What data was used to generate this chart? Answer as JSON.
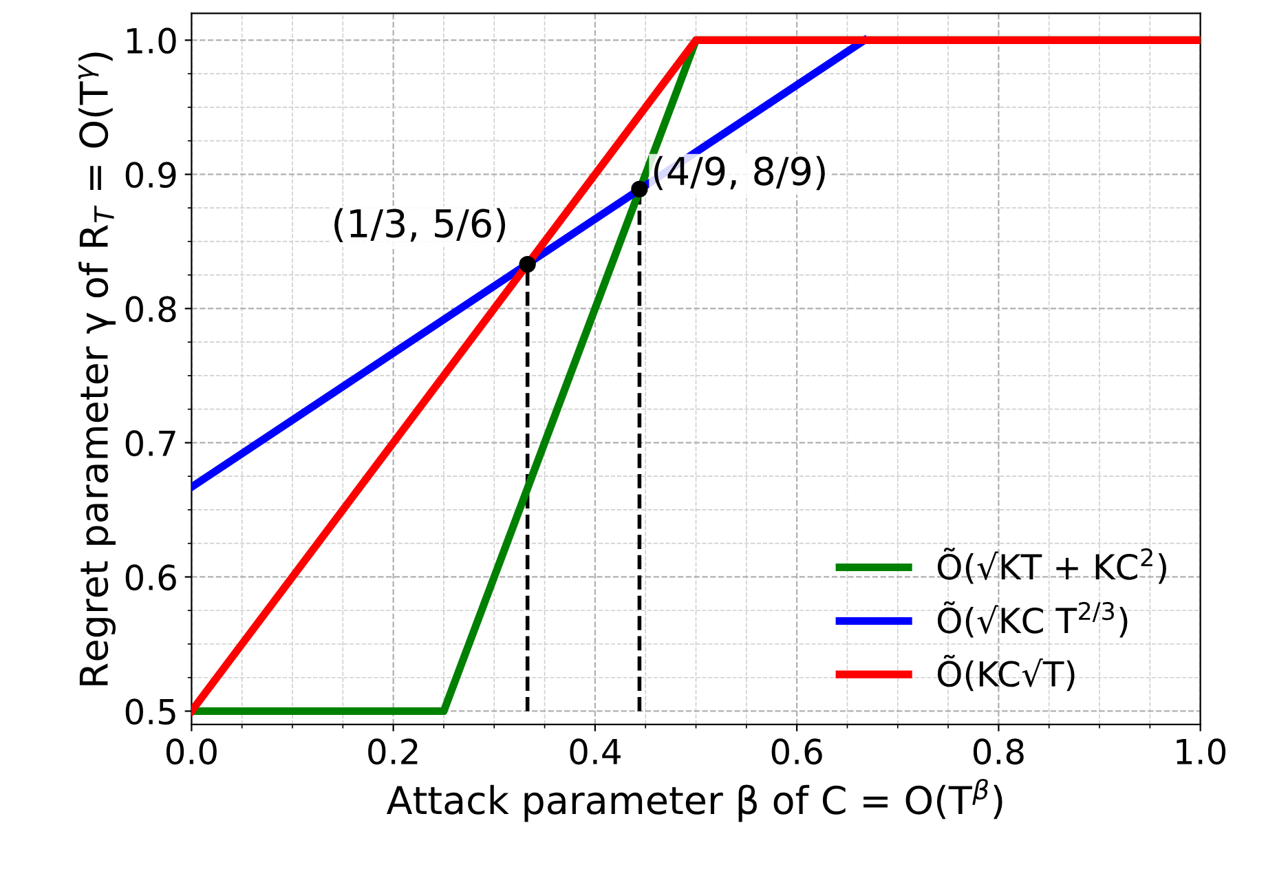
{
  "chart_data": {
    "type": "line",
    "xlabel": "Attack parameter β of C = O(T$^{β}$)",
    "ylabel": "Regret parameter γ of R$_{T}$ = O(T$^{γ}$)",
    "xlim": [
      0.0,
      1.0
    ],
    "ylim": [
      0.49,
      1.02
    ],
    "xticks": [
      {
        "value": 0.0,
        "label": "0.0"
      },
      {
        "value": 0.2,
        "label": "0.2"
      },
      {
        "value": 0.4,
        "label": "0.4"
      },
      {
        "value": 0.6,
        "label": "0.6"
      },
      {
        "value": 0.8,
        "label": "0.8"
      },
      {
        "value": 1.0,
        "label": "1.0"
      }
    ],
    "yticks": [
      {
        "value": 0.5,
        "label": "0.5"
      },
      {
        "value": 0.6,
        "label": "0.6"
      },
      {
        "value": 0.7,
        "label": "0.7"
      },
      {
        "value": 0.8,
        "label": "0.8"
      },
      {
        "value": 0.9,
        "label": "0.9"
      },
      {
        "value": 1.0,
        "label": "1.0"
      }
    ],
    "grid": true,
    "legend": "bottom right",
    "series": [
      {
        "name": "Õ(√KT + KC$^{2}$)",
        "color": "#008000",
        "x": [
          0.0,
          0.25,
          0.5,
          1.0
        ],
        "values": [
          0.5,
          0.5,
          1.0,
          1.0
        ]
      },
      {
        "name": "Õ(√KC T$^{2/3}$)",
        "color": "#0000ff",
        "x": [
          0.0,
          0.667
        ],
        "values": [
          0.667,
          1.0
        ]
      },
      {
        "name": "Õ(KC√T)",
        "color": "#ff0000",
        "x": [
          0.0,
          0.5,
          1.0
        ],
        "values": [
          0.5,
          1.0,
          1.0
        ]
      },
      {
        "color": "#000000",
        "line_style": "dashed",
        "x": [
          0.333,
          0.333
        ],
        "values": [
          0.5,
          0.833
        ]
      },
      {
        "color": "#000000",
        "line_style": "dashed",
        "x": [
          0.444,
          0.444
        ],
        "values": [
          0.5,
          0.889
        ]
      },
      {
        "type": "scatter",
        "color": "#000000",
        "marker": "circle",
        "x": [
          0.333,
          0.444
        ],
        "values": [
          0.833,
          0.889
        ]
      }
    ],
    "annotations": [
      {
        "text": "(1/3, 5/6)",
        "x": 0.333,
        "y": 0.833
      },
      {
        "text": "(4/9, 8/9)",
        "x": 0.444,
        "y": 0.889
      }
    ]
  }
}
